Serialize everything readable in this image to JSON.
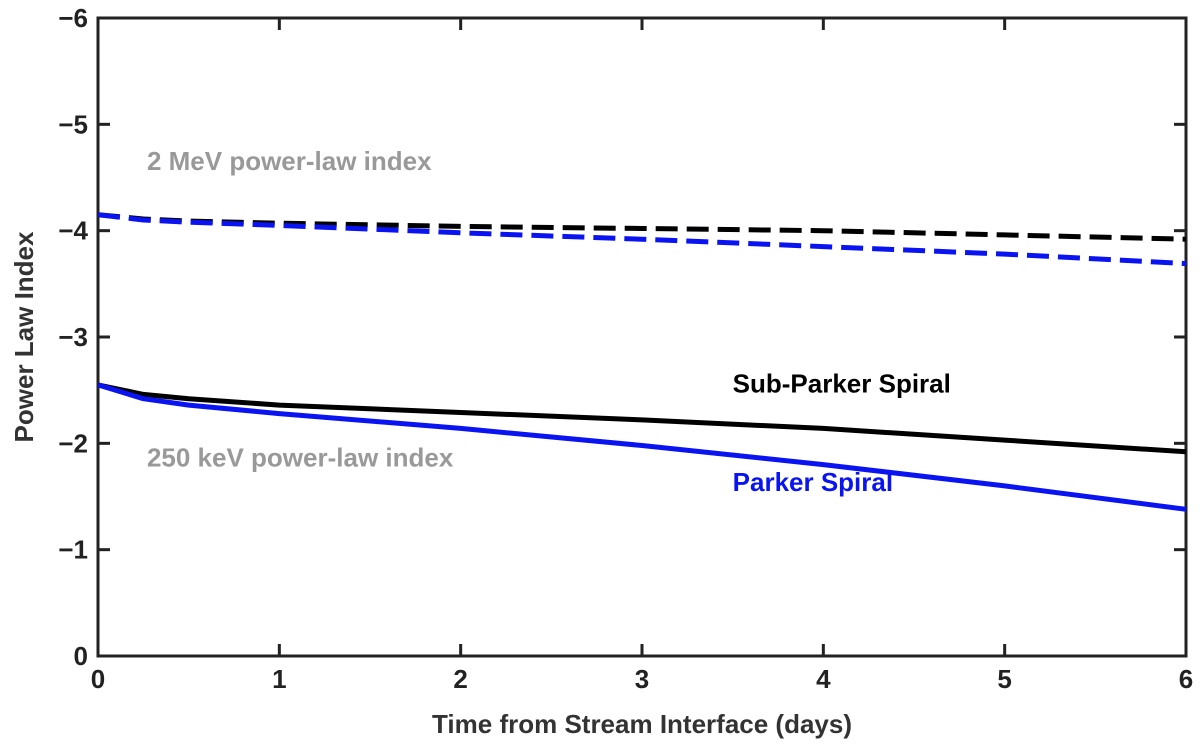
{
  "chart_data": {
    "type": "line",
    "xlabel": "Time from Stream Interface (days)",
    "ylabel": "Power Law Index",
    "xlim": [
      0,
      6
    ],
    "ylim": [
      0,
      -6
    ],
    "y_axis_reversed": true,
    "grid": false,
    "x_ticks": [
      0,
      1,
      2,
      3,
      4,
      5,
      6
    ],
    "x_tick_labels": [
      "0",
      "1",
      "2",
      "3",
      "4",
      "5",
      "6"
    ],
    "y_ticks": [
      0,
      -1,
      -2,
      -3,
      -4,
      -5,
      -6
    ],
    "y_tick_labels": [
      "0",
      "−1",
      "−2",
      "−3",
      "−4",
      "−5",
      "−6"
    ],
    "series": [
      {
        "name": "2 MeV Sub-Parker Spiral",
        "color": "#000000",
        "style": "dashed",
        "x": [
          0,
          0.25,
          0.5,
          1,
          2,
          3,
          4,
          5,
          6
        ],
        "y": [
          -4.15,
          -4.11,
          -4.09,
          -4.07,
          -4.04,
          -4.02,
          -4.0,
          -3.96,
          -3.92
        ]
      },
      {
        "name": "2 MeV Parker Spiral",
        "color": "#0a14f0",
        "style": "dashed",
        "x": [
          0,
          0.25,
          0.5,
          1,
          2,
          3,
          4,
          5,
          6
        ],
        "y": [
          -4.15,
          -4.1,
          -4.08,
          -4.05,
          -3.98,
          -3.92,
          -3.85,
          -3.78,
          -3.69
        ]
      },
      {
        "name": "250 keV Sub-Parker Spiral",
        "color": "#000000",
        "style": "solid",
        "x": [
          0,
          0.25,
          0.5,
          1,
          2,
          3,
          4,
          5,
          6
        ],
        "y": [
          -2.55,
          -2.46,
          -2.42,
          -2.36,
          -2.29,
          -2.22,
          -2.14,
          -2.03,
          -1.92
        ]
      },
      {
        "name": "250 keV Parker Spiral",
        "color": "#0a14f0",
        "style": "solid",
        "x": [
          0,
          0.25,
          0.5,
          1,
          2,
          3,
          4,
          5,
          6
        ],
        "y": [
          -2.55,
          -2.42,
          -2.36,
          -2.28,
          -2.14,
          -1.98,
          -1.8,
          -1.6,
          -1.38
        ]
      }
    ],
    "annotations": [
      {
        "text": "2 MeV power-law index",
        "color": "#999999",
        "x": 0.27,
        "y": -4.57
      },
      {
        "text": "250 keV power-law index",
        "color": "#999999",
        "x": 0.27,
        "y": -1.78
      },
      {
        "text": "Sub-Parker Spiral",
        "color": "#000000",
        "x": 3.5,
        "y": -2.48
      },
      {
        "text": "Parker Spiral",
        "color": "#0a14f0",
        "x": 3.5,
        "y": -1.55
      }
    ]
  }
}
